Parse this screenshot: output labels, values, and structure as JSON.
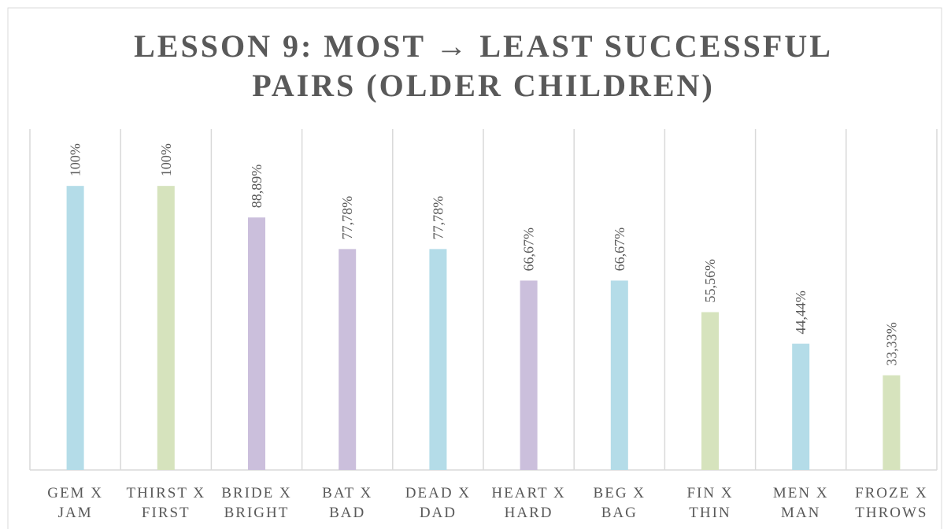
{
  "chart_data": {
    "type": "bar",
    "title": [
      "LESSON 9: MOST → LEAST SUCCESSFUL",
      "PAIRS (OLDER CHILDREN)"
    ],
    "categories": [
      [
        "GEM X",
        "JAM"
      ],
      [
        "THIRST X",
        "FIRST"
      ],
      [
        "BRIDE X",
        "BRIGHT"
      ],
      [
        "BAT X",
        "BAD"
      ],
      [
        "DEAD X",
        "DAD"
      ],
      [
        "HEART X",
        "HARD"
      ],
      [
        "BEG X",
        "BAG"
      ],
      [
        "FIN X",
        "THIN"
      ],
      [
        "MEN X",
        "MAN"
      ],
      [
        "FROZE X",
        "THROWS"
      ]
    ],
    "values": [
      100,
      100,
      88.89,
      77.78,
      77.78,
      66.67,
      66.67,
      55.56,
      44.44,
      33.33
    ],
    "value_labels": [
      "100%",
      "100%",
      "88,89%",
      "77,78%",
      "77,78%",
      "66,67%",
      "66,67%",
      "55,56%",
      "44,44%",
      "33,33%"
    ],
    "colors": [
      "#b4dce8",
      "#d6e3bd",
      "#cbbfdc",
      "#cbbfdc",
      "#b4dce8",
      "#cbbfdc",
      "#b4dce8",
      "#d6e3bd",
      "#b4dce8",
      "#d6e3bd"
    ],
    "ylim": [
      0,
      120
    ]
  }
}
